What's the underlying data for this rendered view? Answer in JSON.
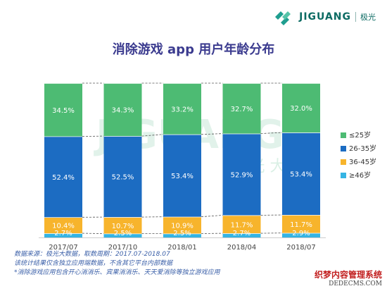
{
  "logo": {
    "name": "JIGUANG",
    "cn": "极光"
  },
  "watermark": {
    "text": "JIGUANG",
    "sub": "极  光  大  数"
  },
  "chart_data": {
    "type": "bar",
    "stacked": true,
    "percent_stacked": true,
    "title": "消除游戏 app 用户年龄分布",
    "categories": [
      "2017/07",
      "2017/10",
      "2018/01",
      "2018/04",
      "2018/07"
    ],
    "series": [
      {
        "name": "≥46岁",
        "values": [
          2.7,
          2.5,
          2.5,
          2.7,
          2.9
        ],
        "labels": [
          "2.7%",
          "2.5%",
          "2.5%",
          "2.7%",
          "2.9%"
        ],
        "color": "#35b4e3"
      },
      {
        "name": "36-45岁",
        "values": [
          10.4,
          10.7,
          10.9,
          11.7,
          11.7
        ],
        "labels": [
          "10.4%",
          "10.7%",
          "10.9%",
          "11.7%",
          "11.7%"
        ],
        "color": "#f7b42c"
      },
      {
        "name": "26-35岁",
        "values": [
          52.4,
          52.5,
          53.4,
          52.9,
          53.4
        ],
        "labels": [
          "52.4%",
          "52.5%",
          "53.4%",
          "52.9%",
          "53.4%"
        ],
        "color": "#1c6cc2"
      },
      {
        "name": "≤25岁",
        "values": [
          34.5,
          34.3,
          33.2,
          32.7,
          32.0
        ],
        "labels": [
          "34.5%",
          "34.3%",
          "33.2%",
          "32.7%",
          "32.0%"
        ],
        "color": "#4dbb73"
      }
    ],
    "legend": {
      "position": "right",
      "order": [
        "≤25岁",
        "26-35岁",
        "36-45岁",
        "≥46岁"
      ]
    },
    "connector_lines": "dashed",
    "ylim": [
      0,
      100
    ],
    "grid": false
  },
  "footer": {
    "line1": "数据来源：极光大数据，取数周期：2017.07-2018.07",
    "line2": "该统计结果仅含独立应用端数据，不含其它平台内部数据",
    "line3": "*消除游戏应用包含开心消消乐、宾果消消乐、天天爱消除等独立游戏应用"
  },
  "corner_watermark": {
    "title": "织梦内容管理系统",
    "url": "DEDECMS.COM"
  }
}
